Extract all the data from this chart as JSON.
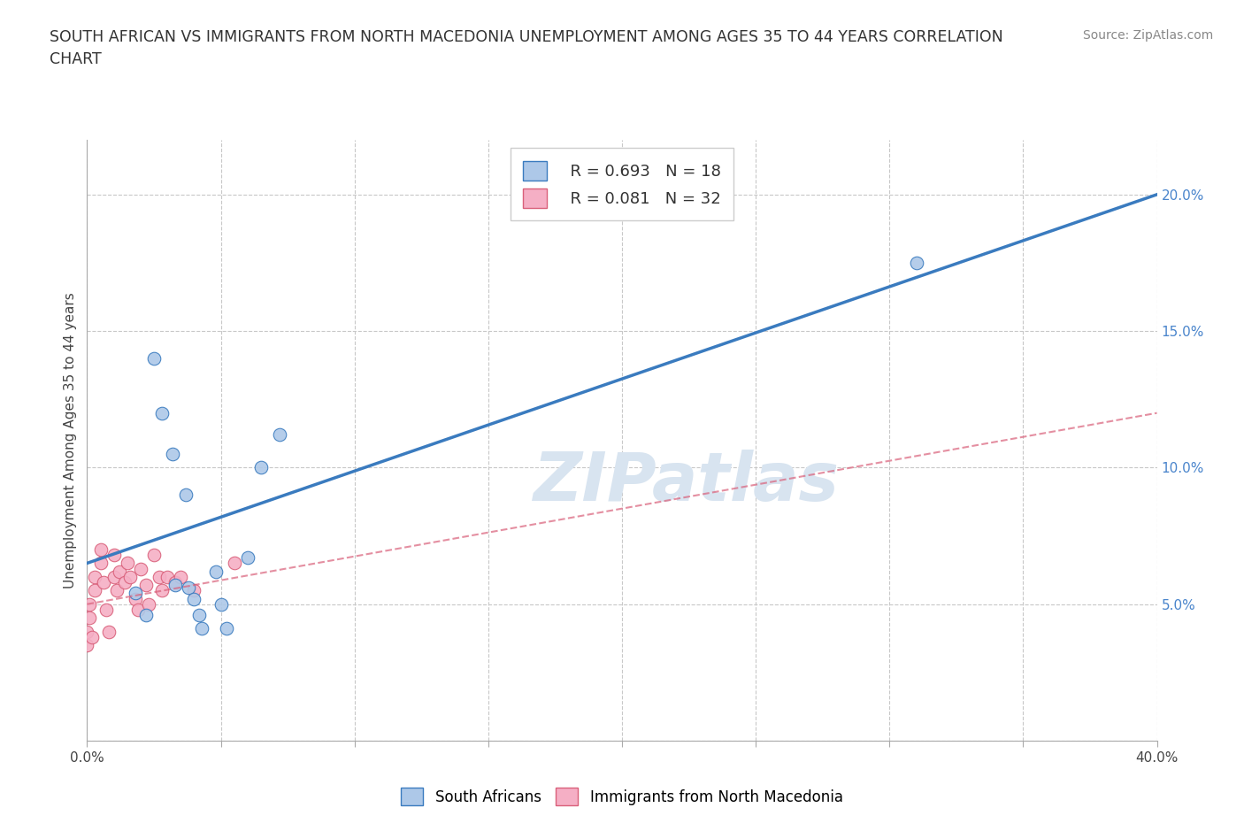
{
  "title": "SOUTH AFRICAN VS IMMIGRANTS FROM NORTH MACEDONIA UNEMPLOYMENT AMONG AGES 35 TO 44 YEARS CORRELATION\nCHART",
  "source": "Source: ZipAtlas.com",
  "ylabel": "Unemployment Among Ages 35 to 44 years",
  "xlim": [
    0.0,
    0.4
  ],
  "ylim": [
    0.0,
    0.22
  ],
  "xticks": [
    0.0,
    0.05,
    0.1,
    0.15,
    0.2,
    0.25,
    0.3,
    0.35,
    0.4
  ],
  "yticks": [
    0.0,
    0.05,
    0.1,
    0.15,
    0.2
  ],
  "blue_R": 0.693,
  "blue_N": 18,
  "pink_R": 0.081,
  "pink_N": 32,
  "blue_color": "#adc8e8",
  "pink_color": "#f5afc5",
  "blue_line_color": "#3a7bbf",
  "pink_line_color": "#d9607a",
  "grid_color": "#c8c8c8",
  "watermark": "ZIPatlas",
  "watermark_color": "#d8e4f0",
  "south_africans_x": [
    0.018,
    0.022,
    0.025,
    0.028,
    0.032,
    0.033,
    0.037,
    0.038,
    0.04,
    0.042,
    0.043,
    0.048,
    0.05,
    0.052,
    0.06,
    0.065,
    0.072,
    0.31
  ],
  "south_africans_y": [
    0.054,
    0.046,
    0.14,
    0.12,
    0.105,
    0.057,
    0.09,
    0.056,
    0.052,
    0.046,
    0.041,
    0.062,
    0.05,
    0.041,
    0.067,
    0.1,
    0.112,
    0.175
  ],
  "immigrants_x": [
    0.0,
    0.0,
    0.001,
    0.001,
    0.002,
    0.003,
    0.003,
    0.005,
    0.005,
    0.006,
    0.007,
    0.008,
    0.01,
    0.01,
    0.011,
    0.012,
    0.014,
    0.015,
    0.016,
    0.018,
    0.019,
    0.02,
    0.022,
    0.023,
    0.025,
    0.027,
    0.028,
    0.03,
    0.033,
    0.035,
    0.04,
    0.055
  ],
  "immigrants_y": [
    0.04,
    0.035,
    0.05,
    0.045,
    0.038,
    0.06,
    0.055,
    0.07,
    0.065,
    0.058,
    0.048,
    0.04,
    0.068,
    0.06,
    0.055,
    0.062,
    0.058,
    0.065,
    0.06,
    0.052,
    0.048,
    0.063,
    0.057,
    0.05,
    0.068,
    0.06,
    0.055,
    0.06,
    0.058,
    0.06,
    0.055,
    0.065
  ],
  "blue_line_x": [
    0.0,
    0.4
  ],
  "blue_line_y": [
    0.065,
    0.2
  ],
  "pink_line_x": [
    0.0,
    0.4
  ],
  "pink_line_y": [
    0.05,
    0.12
  ]
}
